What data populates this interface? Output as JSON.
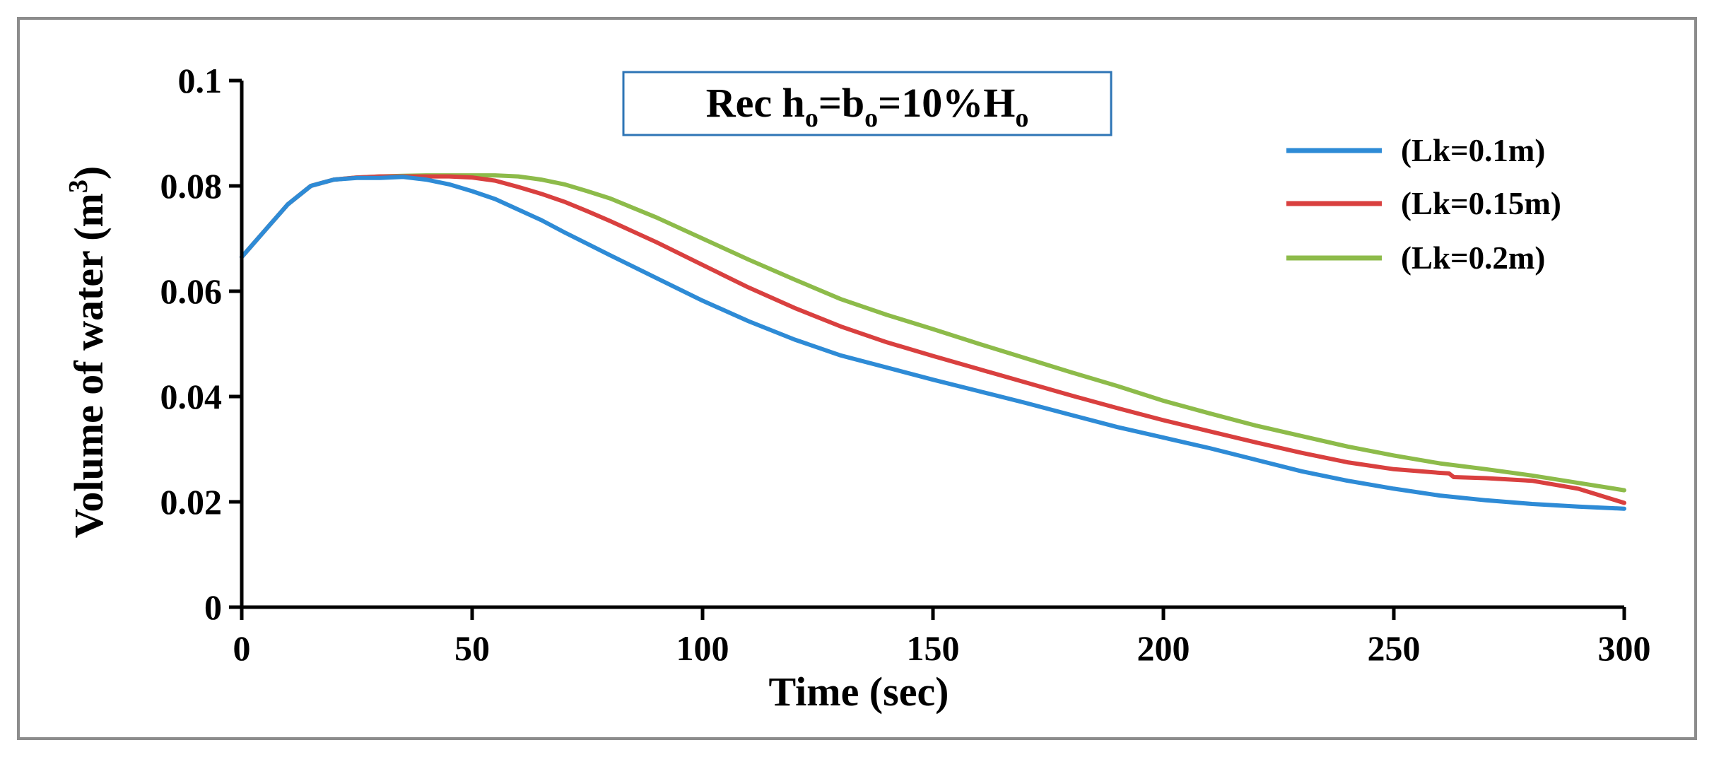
{
  "chart_data": {
    "type": "line",
    "title": "",
    "xlabel": "Time (sec)",
    "ylabel": "Volume of water (m",
    "ylabel_superscript": "3",
    "ylabel_close": ")",
    "xlim": [
      0,
      300
    ],
    "ylim": [
      0,
      0.1
    ],
    "x_ticks": [
      0,
      50,
      100,
      150,
      200,
      250,
      300
    ],
    "y_ticks": [
      0,
      0.02,
      0.04,
      0.06,
      0.08,
      0.1
    ],
    "x_tick_labels": [
      "0",
      "50",
      "100",
      "150",
      "200",
      "250",
      "300"
    ],
    "y_tick_labels": [
      "0",
      "0.02",
      "0.04",
      "0.06",
      "0.08",
      "0.1"
    ],
    "grid": false,
    "legend_position": "top-right",
    "annotation": {
      "prefix": "Rec h",
      "sub1": "o",
      "mid1": "=b",
      "sub2": "o",
      "mid2": "=10%H",
      "sub3": "o"
    },
    "series": [
      {
        "name": "(Lk=0.1m)",
        "color": "#2e8bd6",
        "x": [
          0,
          5,
          10,
          15,
          20,
          25,
          30,
          35,
          40,
          45,
          50,
          55,
          60,
          65,
          70,
          75,
          80,
          90,
          100,
          110,
          120,
          130,
          140,
          150,
          160,
          170,
          180,
          190,
          200,
          210,
          220,
          230,
          240,
          250,
          260,
          270,
          280,
          290,
          300
        ],
        "values": [
          0.0665,
          0.0715,
          0.0765,
          0.08,
          0.0812,
          0.0815,
          0.0815,
          0.0817,
          0.0812,
          0.0803,
          0.079,
          0.0775,
          0.0755,
          0.0735,
          0.0712,
          0.069,
          0.0668,
          0.0625,
          0.0582,
          0.0543,
          0.0508,
          0.0478,
          0.0455,
          0.0432,
          0.041,
          0.0388,
          0.0365,
          0.0342,
          0.0322,
          0.0302,
          0.028,
          0.0258,
          0.024,
          0.0225,
          0.0212,
          0.0203,
          0.0196,
          0.0191,
          0.0187
        ]
      },
      {
        "name": "(Lk=0.15m)",
        "color": "#d9403f",
        "x": [
          0,
          5,
          10,
          15,
          20,
          25,
          30,
          35,
          40,
          45,
          50,
          55,
          60,
          65,
          70,
          75,
          80,
          90,
          100,
          110,
          120,
          130,
          140,
          150,
          160,
          170,
          180,
          190,
          200,
          210,
          220,
          230,
          240,
          250,
          260,
          262,
          263,
          270,
          280,
          290,
          300
        ],
        "values": [
          0.0665,
          0.0715,
          0.0765,
          0.08,
          0.0812,
          0.0816,
          0.0818,
          0.0818,
          0.0818,
          0.0818,
          0.0816,
          0.081,
          0.0798,
          0.0785,
          0.077,
          0.0752,
          0.0733,
          0.0693,
          0.065,
          0.0607,
          0.0568,
          0.0533,
          0.0503,
          0.0477,
          0.0452,
          0.0427,
          0.0402,
          0.0378,
          0.0355,
          0.0334,
          0.0313,
          0.0293,
          0.0275,
          0.0262,
          0.0255,
          0.0254,
          0.0247,
          0.0245,
          0.024,
          0.0225,
          0.0198
        ]
      },
      {
        "name": "(Lk=0.2m)",
        "color": "#8dbb4a",
        "x": [
          0,
          5,
          10,
          15,
          20,
          25,
          30,
          35,
          40,
          45,
          50,
          55,
          60,
          65,
          70,
          75,
          80,
          90,
          100,
          110,
          120,
          130,
          140,
          150,
          160,
          170,
          180,
          190,
          200,
          210,
          220,
          230,
          240,
          250,
          260,
          270,
          280,
          290,
          300
        ],
        "values": [
          0.0665,
          0.0715,
          0.0765,
          0.08,
          0.0812,
          0.0816,
          0.0818,
          0.0819,
          0.082,
          0.082,
          0.082,
          0.082,
          0.0818,
          0.0812,
          0.0803,
          0.079,
          0.0776,
          0.074,
          0.07,
          0.066,
          0.0622,
          0.0585,
          0.0555,
          0.0528,
          0.05,
          0.0473,
          0.0446,
          0.042,
          0.0392,
          0.0368,
          0.0345,
          0.0325,
          0.0305,
          0.0288,
          0.0273,
          0.0262,
          0.025,
          0.0236,
          0.0222
        ]
      }
    ]
  }
}
